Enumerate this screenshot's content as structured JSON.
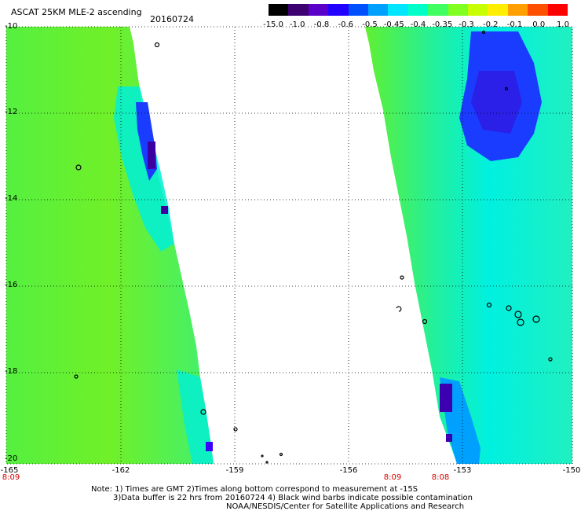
{
  "header": {
    "title": "ASCAT 25KM MLE-2 ascending",
    "date": "20160724"
  },
  "colorbar": {
    "labels": [
      "-15.0",
      "-1.0",
      "-0.8",
      "-0.6",
      "-0.5",
      "-0.45",
      "-0.4",
      "-0.35",
      "-0.3",
      "-0.2",
      "-0.1",
      "0.0",
      "1.0"
    ],
    "colors": [
      "#000000",
      "#3c0070",
      "#5a00c8",
      "#2200ff",
      "#0050ff",
      "#00a0ff",
      "#00e6ff",
      "#00ffc8",
      "#40ff60",
      "#80ff20",
      "#c8ff00",
      "#ffee00",
      "#ffa000",
      "#ff5000",
      "#ff0000"
    ]
  },
  "map": {
    "latitude_labels": [
      "-10",
      "-12",
      "-14",
      "-16",
      "-18",
      "-20"
    ],
    "longitude_labels": [
      "-165",
      "-162",
      "-159",
      "-156",
      "-153",
      "-150"
    ],
    "time_labels": [
      "8:09",
      "8:09",
      "8:08"
    ]
  },
  "notes": {
    "line1": "Note: 1) Times are GMT 2)Times along bottom correspond to measurement at -15S",
    "line2": "3)Data buffer is 22 hrs from 20160724 4) Black wind barbs indicate possible contamination",
    "line3": "NOAA/NESDIS/Center for Satellite Applications and Research"
  }
}
